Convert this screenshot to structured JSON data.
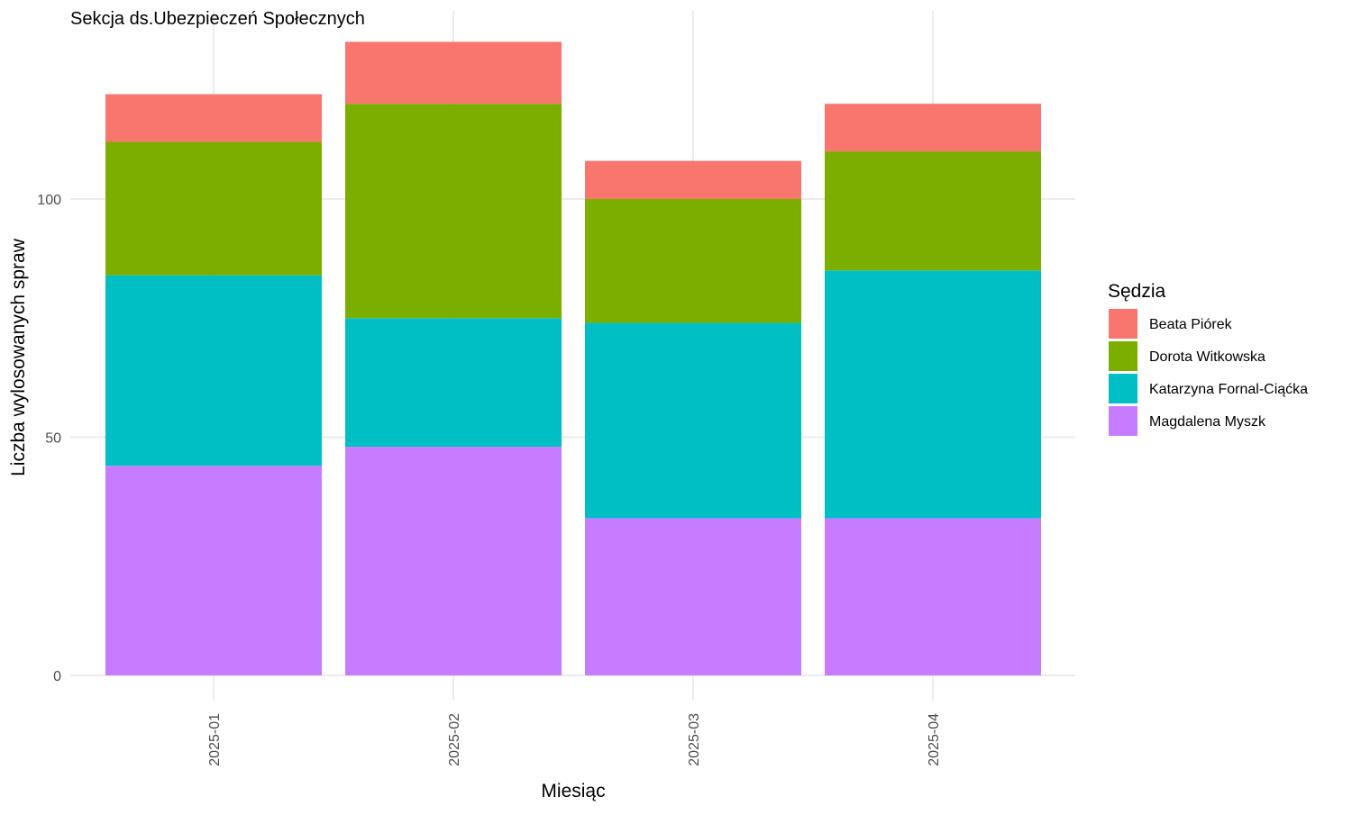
{
  "chart_data": {
    "type": "bar",
    "stacked": true,
    "title": "Sekcja ds.Ubezpieczeń Społecznych",
    "xlabel": "Miesiąc",
    "ylabel": "Liczba wylosowanych spraw",
    "categories": [
      "2025-01",
      "2025-02",
      "2025-03",
      "2025-04"
    ],
    "ylim": [
      -5,
      140
    ],
    "yticks": [
      0,
      50,
      100
    ],
    "grid": true,
    "legend": {
      "title": "Sędzia",
      "position": "right"
    },
    "series": [
      {
        "name": "Magdalena Myszk",
        "color": "#C77CFF",
        "values": [
          44,
          48,
          33,
          33
        ]
      },
      {
        "name": "Katarzyna Fornal-Ciąćka",
        "color": "#00BFC4",
        "values": [
          40,
          27,
          41,
          52
        ]
      },
      {
        "name": "Dorota Witkowska",
        "color": "#7CAE00",
        "values": [
          28,
          45,
          26,
          25
        ]
      },
      {
        "name": "Beata Piórek",
        "color": "#F8766D",
        "values": [
          10,
          13,
          8,
          10
        ]
      }
    ]
  }
}
